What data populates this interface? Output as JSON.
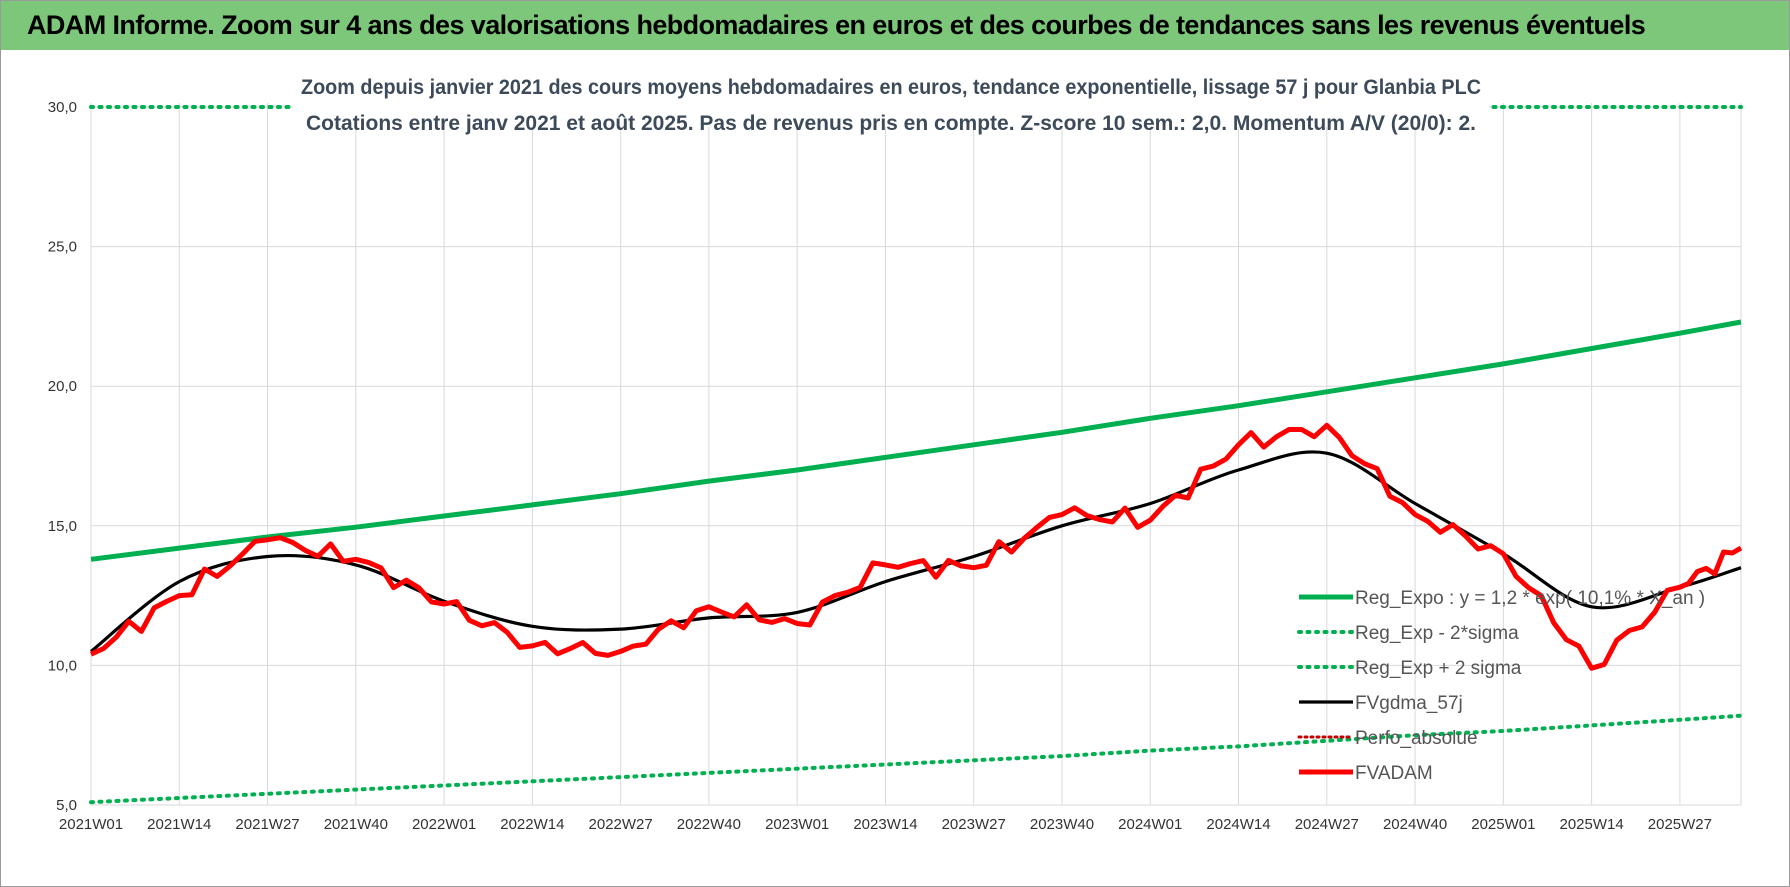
{
  "page": {
    "banner_title": "ADAM Informe. Zoom sur 4 ans des valorisations hebdomadaires en euros et des courbes de tendances sans les revenus éventuels"
  },
  "colors": {
    "banner_bg": "#7dc77b",
    "reg_expo": "#00b050",
    "sigma_bands": "#00b050",
    "fvgdma": "#000000",
    "perfo_absolue": "#c00000",
    "fvadam": "#ff0000",
    "grid": "#d9d9d9"
  },
  "chart_data": {
    "type": "line",
    "title": "Zoom depuis janvier 2021 des cours moyens hebdomadaires en euros, tendance exponentielle, lissage 57 j pour Glanbia PLC",
    "subtitle": "Cotations entre janv 2021 et août 2025. Pas de revenus pris en compte. Z-score 10 sem.: 2,0. Momentum A/V (20/0): 2.",
    "xlabel": "",
    "ylabel": "",
    "ylim": [
      5,
      30
    ],
    "yticks": [
      "5,0",
      "10,0",
      "15,0",
      "20,0",
      "25,0",
      "30,0"
    ],
    "xticks": [
      "2021W01",
      "2021W14",
      "2021W27",
      "2021W40",
      "2022W01",
      "2022W14",
      "2022W27",
      "2022W40",
      "2023W01",
      "2023W14",
      "2023W27",
      "2023W40",
      "2024W01",
      "2024W14",
      "2024W27",
      "2024W40",
      "2025W01",
      "2025W14",
      "2025W27"
    ],
    "x_weeks": [
      0,
      13,
      26,
      39,
      52,
      65,
      78,
      91,
      104,
      117,
      130,
      143,
      156,
      169,
      182,
      195,
      208,
      221,
      234,
      243
    ],
    "grid": "vertical-and-horizontal",
    "legend_position": "bottom-right",
    "series": [
      {
        "name": "Reg_Expo : y = 1,2 * exp( 10,1% * X_an )",
        "style": "solid-thick",
        "values": [
          13.8,
          14.2,
          14.6,
          14.95,
          15.35,
          15.75,
          16.15,
          16.6,
          17.0,
          17.45,
          17.9,
          18.35,
          18.85,
          19.3,
          19.8,
          20.3,
          20.8,
          21.35,
          21.9,
          22.3
        ]
      },
      {
        "name": "Reg_Exp - 2*sigma",
        "style": "dotted",
        "values": [
          5.1,
          5.25,
          5.4,
          5.55,
          5.7,
          5.85,
          6.0,
          6.15,
          6.3,
          6.45,
          6.6,
          6.75,
          6.95,
          7.1,
          7.3,
          7.5,
          7.65,
          7.85,
          8.05,
          8.2
        ]
      },
      {
        "name": "Reg_Exp + 2 sigma",
        "style": "dotted",
        "values": [
          30.0,
          30.0,
          30.0,
          30.0,
          30.0,
          30.0,
          30.0,
          30.0,
          30.0,
          30.0,
          30.0,
          30.0,
          30.0,
          30.0,
          30.0,
          30.0,
          30.0,
          30.0,
          30.0,
          30.0
        ]
      },
      {
        "name": "FVgdma_57j",
        "style": "solid",
        "values": [
          10.5,
          13.0,
          13.9,
          13.6,
          12.3,
          11.4,
          11.3,
          11.7,
          11.9,
          13.0,
          13.9,
          15.0,
          15.8,
          17.0,
          17.6,
          15.8,
          14.0,
          12.1,
          12.8,
          13.5
        ]
      },
      {
        "name": "Perfo_absolue",
        "style": "dotted-thin",
        "values": []
      },
      {
        "name": "FVADAM",
        "style": "solid-thick",
        "values": [
          10.4,
          12.5,
          14.5,
          13.8,
          12.2,
          10.7,
          10.5,
          12.1,
          11.5,
          13.6,
          13.5,
          15.4,
          15.2,
          17.9,
          18.6,
          15.4,
          14.0,
          9.9,
          12.8,
          14.2
        ]
      }
    ]
  }
}
